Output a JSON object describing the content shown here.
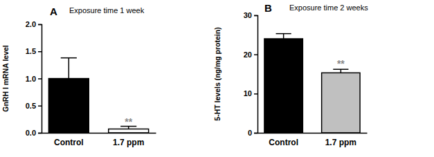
{
  "chart_data": [
    {
      "type": "bar",
      "panel_label": "A",
      "title": "Exposure time 1 week",
      "ylabel": "GnRH I mRNA level",
      "categories": [
        "Control",
        "1.7 ppm"
      ],
      "values": [
        1.0,
        0.07
      ],
      "errors": [
        0.38,
        0.05
      ],
      "colors": [
        "#000000",
        "#ffffff"
      ],
      "ylim": [
        0,
        2.0
      ],
      "yticks": [
        {
          "value": 0,
          "label": "0.0"
        },
        {
          "value": 0.5,
          "label": "0.5"
        },
        {
          "value": 1.0,
          "label": "1.0"
        },
        {
          "value": 1.5,
          "label": "1.5"
        },
        {
          "value": 2.0,
          "label": "2.0"
        }
      ],
      "annotations": [
        {
          "text": "**",
          "x": "1.7 ppm",
          "y": 0.14
        }
      ],
      "grid": false
    },
    {
      "type": "bar",
      "panel_label": "B",
      "title": "Exposure time 2 weeks",
      "ylabel": "5-HT levels (ng/mg protein)",
      "categories": [
        "Control",
        "1.7 ppm"
      ],
      "values": [
        24.0,
        15.3
      ],
      "errors": [
        1.3,
        0.9
      ],
      "colors": [
        "#000000",
        "#c0c0c0"
      ],
      "ylim": [
        0,
        30
      ],
      "yticks": [
        0,
        10,
        20,
        30
      ],
      "annotations": [
        {
          "text": "**",
          "x": "1.7 ppm",
          "y": 16.8
        }
      ],
      "grid": false
    }
  ]
}
